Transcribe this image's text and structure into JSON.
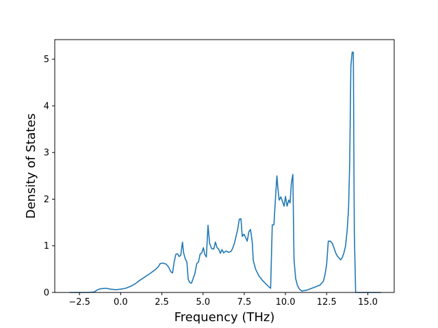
{
  "chart_data": {
    "type": "line",
    "title": "",
    "xlabel": "Frequency (THz)",
    "ylabel": "Density of States",
    "xlim": [
      -4.0,
      16.6
    ],
    "ylim": [
      0.0,
      5.42
    ],
    "xticks": [
      -2.5,
      0.0,
      2.5,
      5.0,
      7.5,
      10.0,
      12.5,
      15.0
    ],
    "xtick_labels": [
      "−2.5",
      "0.0",
      "2.5",
      "5.0",
      "7.5",
      "10.0",
      "12.5",
      "15.0"
    ],
    "yticks": [
      0,
      1,
      2,
      3,
      4,
      5
    ],
    "ytick_labels": [
      "0",
      "1",
      "2",
      "3",
      "4",
      "5"
    ],
    "grid": false,
    "legend": false,
    "series": [
      {
        "color": "#1f77b4",
        "points": [
          [
            -3.1,
            0.0
          ],
          [
            -2.0,
            0.0
          ],
          [
            -1.6,
            0.01
          ],
          [
            -1.4,
            0.06
          ],
          [
            -1.2,
            0.08
          ],
          [
            -0.9,
            0.09
          ],
          [
            -0.6,
            0.07
          ],
          [
            -0.3,
            0.06
          ],
          [
            0.0,
            0.07
          ],
          [
            0.3,
            0.09
          ],
          [
            0.6,
            0.13
          ],
          [
            0.9,
            0.19
          ],
          [
            1.2,
            0.27
          ],
          [
            1.5,
            0.34
          ],
          [
            1.8,
            0.41
          ],
          [
            2.1,
            0.49
          ],
          [
            2.3,
            0.56
          ],
          [
            2.4,
            0.62
          ],
          [
            2.55,
            0.63
          ],
          [
            2.75,
            0.61
          ],
          [
            2.9,
            0.55
          ],
          [
            3.05,
            0.44
          ],
          [
            3.15,
            0.42
          ],
          [
            3.25,
            0.66
          ],
          [
            3.35,
            0.82
          ],
          [
            3.45,
            0.83
          ],
          [
            3.55,
            0.77
          ],
          [
            3.65,
            0.8
          ],
          [
            3.75,
            1.08
          ],
          [
            3.82,
            0.85
          ],
          [
            3.92,
            0.72
          ],
          [
            4.02,
            0.65
          ],
          [
            4.1,
            0.28
          ],
          [
            4.2,
            0.21
          ],
          [
            4.3,
            0.2
          ],
          [
            4.5,
            0.4
          ],
          [
            4.62,
            0.62
          ],
          [
            4.72,
            0.65
          ],
          [
            4.82,
            0.82
          ],
          [
            4.92,
            0.85
          ],
          [
            5.02,
            0.96
          ],
          [
            5.1,
            0.82
          ],
          [
            5.2,
            0.76
          ],
          [
            5.3,
            1.44
          ],
          [
            5.4,
            1.05
          ],
          [
            5.52,
            0.94
          ],
          [
            5.65,
            0.93
          ],
          [
            5.75,
            1.08
          ],
          [
            5.85,
            0.96
          ],
          [
            5.95,
            0.93
          ],
          [
            6.05,
            0.84
          ],
          [
            6.15,
            0.92
          ],
          [
            6.25,
            0.85
          ],
          [
            6.4,
            0.89
          ],
          [
            6.55,
            0.86
          ],
          [
            6.7,
            0.88
          ],
          [
            6.8,
            0.95
          ],
          [
            6.9,
            1.05
          ],
          [
            7.0,
            1.2
          ],
          [
            7.1,
            1.35
          ],
          [
            7.2,
            1.57
          ],
          [
            7.3,
            1.58
          ],
          [
            7.38,
            1.2
          ],
          [
            7.48,
            1.25
          ],
          [
            7.58,
            1.18
          ],
          [
            7.68,
            1.1
          ],
          [
            7.78,
            1.3
          ],
          [
            7.88,
            1.35
          ],
          [
            7.98,
            1.1
          ],
          [
            8.05,
            0.68
          ],
          [
            8.2,
            0.49
          ],
          [
            8.4,
            0.35
          ],
          [
            8.6,
            0.26
          ],
          [
            8.8,
            0.19
          ],
          [
            9.0,
            0.12
          ],
          [
            9.1,
            0.09
          ],
          [
            9.2,
            1.45
          ],
          [
            9.3,
            1.45
          ],
          [
            9.4,
            2.05
          ],
          [
            9.48,
            2.5
          ],
          [
            9.55,
            2.2
          ],
          [
            9.62,
            1.98
          ],
          [
            9.72,
            2.05
          ],
          [
            9.82,
            1.95
          ],
          [
            9.92,
            1.85
          ],
          [
            10.0,
            2.06
          ],
          [
            10.1,
            1.85
          ],
          [
            10.2,
            1.98
          ],
          [
            10.28,
            1.92
          ],
          [
            10.36,
            2.35
          ],
          [
            10.45,
            2.53
          ],
          [
            10.52,
            0.7
          ],
          [
            10.62,
            0.3
          ],
          [
            10.72,
            0.16
          ],
          [
            10.85,
            0.07
          ],
          [
            11.0,
            0.03
          ],
          [
            11.3,
            0.05
          ],
          [
            11.6,
            0.09
          ],
          [
            11.9,
            0.13
          ],
          [
            12.1,
            0.16
          ],
          [
            12.3,
            0.24
          ],
          [
            12.4,
            0.38
          ],
          [
            12.5,
            0.6
          ],
          [
            12.6,
            1.1
          ],
          [
            12.72,
            1.1
          ],
          [
            12.85,
            1.05
          ],
          [
            12.95,
            0.95
          ],
          [
            13.05,
            0.85
          ],
          [
            13.15,
            0.78
          ],
          [
            13.25,
            0.74
          ],
          [
            13.35,
            0.7
          ],
          [
            13.45,
            0.75
          ],
          [
            13.55,
            0.85
          ],
          [
            13.65,
            1.0
          ],
          [
            13.75,
            1.35
          ],
          [
            13.83,
            1.8
          ],
          [
            13.9,
            2.8
          ],
          [
            13.97,
            4.85
          ],
          [
            14.05,
            5.15
          ],
          [
            14.12,
            5.15
          ],
          [
            14.18,
            1.28
          ],
          [
            14.26,
            0.0
          ],
          [
            15.8,
            0.0
          ]
        ]
      }
    ]
  }
}
